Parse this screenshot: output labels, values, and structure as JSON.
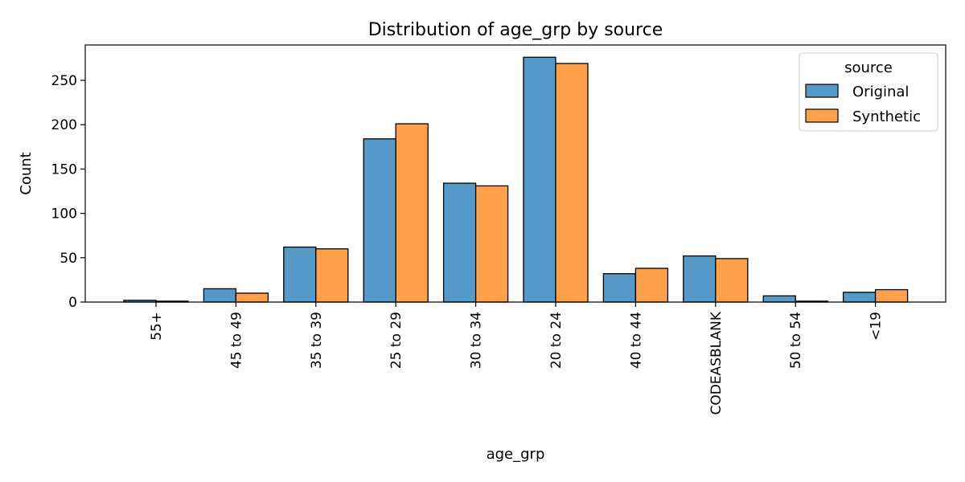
{
  "chart_data": {
    "type": "bar",
    "title": "Distribution of age_grp by source",
    "xlabel": "age_grp",
    "ylabel": "Count",
    "categories": [
      "55+",
      "45 to 49",
      "35 to 39",
      "25 to 29",
      "30 to 34",
      "20 to 24",
      "40 to 44",
      "CODEASBLANK",
      "50 to 54",
      "<19"
    ],
    "series": [
      {
        "name": "Original",
        "color": "#5499c7",
        "values": [
          2,
          15,
          62,
          184,
          134,
          276,
          32,
          52,
          7,
          11
        ]
      },
      {
        "name": "Synthetic",
        "color": "#ffa04a",
        "values": [
          1,
          10,
          60,
          201,
          131,
          269,
          38,
          49,
          1,
          14
        ]
      }
    ],
    "ylim": [
      0,
      290
    ],
    "yticks": [
      0,
      50,
      100,
      150,
      200,
      250
    ],
    "grid": false,
    "legend": {
      "title": "source",
      "placement": "top-right"
    }
  }
}
